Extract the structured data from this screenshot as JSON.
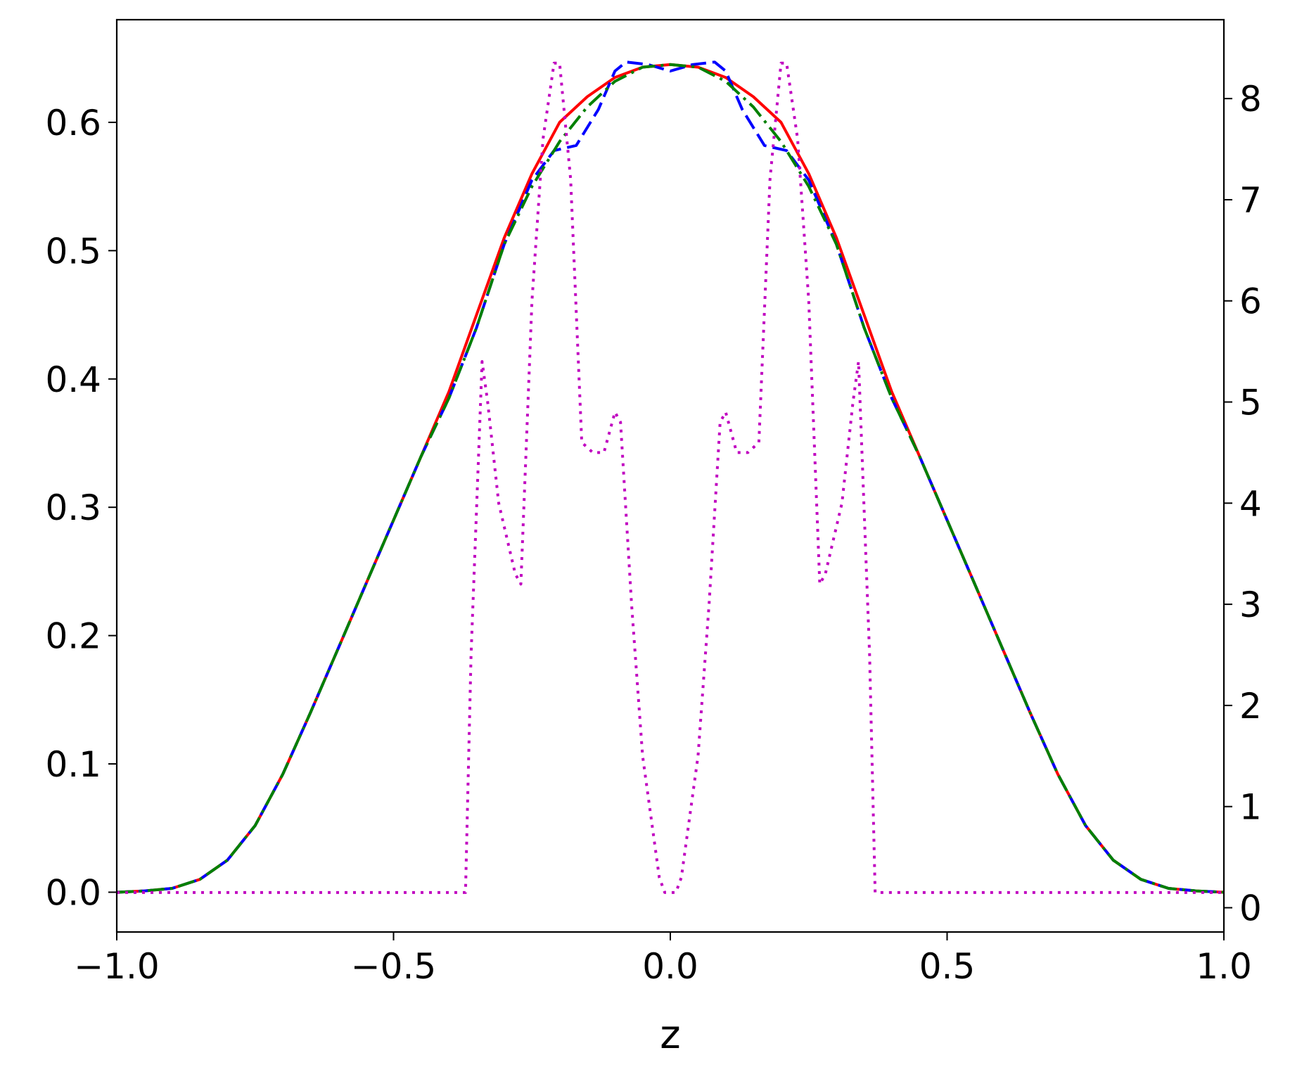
{
  "chart_data": {
    "type": "line",
    "xlabel": "z",
    "ylabel": "",
    "ylabel_right": "",
    "xlim": [
      -1.0,
      1.0
    ],
    "ylim": [
      -0.031,
      0.68
    ],
    "ylim_right": [
      -0.24,
      8.78
    ],
    "grid": false,
    "x_ticks": [
      -1.0,
      -0.5,
      0.0,
      0.5,
      1.0
    ],
    "x_tick_labels": [
      "−1.0",
      "−0.5",
      "0.0",
      "0.5",
      "1.0"
    ],
    "y_ticks": [
      0.0,
      0.1,
      0.2,
      0.3,
      0.4,
      0.5,
      0.6
    ],
    "y_tick_labels": [
      "0.0",
      "0.1",
      "0.2",
      "0.3",
      "0.4",
      "0.5",
      "0.6"
    ],
    "y_right_ticks": [
      0,
      1,
      2,
      3,
      4,
      5,
      6,
      7,
      8
    ],
    "y_right_tick_labels": [
      "0",
      "1",
      "2",
      "3",
      "4",
      "5",
      "6",
      "7",
      "8"
    ],
    "series": [
      {
        "color": "#ff0000",
        "style": "solid",
        "axis": "left",
        "x": [
          -1.0,
          -0.95,
          -0.9,
          -0.85,
          -0.8,
          -0.75,
          -0.7,
          -0.65,
          -0.6,
          -0.55,
          -0.5,
          -0.45,
          -0.4,
          -0.35,
          -0.3,
          -0.25,
          -0.2,
          -0.15,
          -0.1,
          -0.05,
          0.0,
          0.05,
          0.1,
          0.15,
          0.2,
          0.25,
          0.3,
          0.35,
          0.4,
          0.45,
          0.5,
          0.55,
          0.6,
          0.65,
          0.7,
          0.75,
          0.8,
          0.85,
          0.9,
          0.95,
          1.0
        ],
        "y": [
          0.0,
          0.001,
          0.003,
          0.01,
          0.025,
          0.052,
          0.092,
          0.14,
          0.19,
          0.24,
          0.29,
          0.34,
          0.39,
          0.45,
          0.51,
          0.56,
          0.6,
          0.62,
          0.635,
          0.643,
          0.645,
          0.643,
          0.635,
          0.62,
          0.6,
          0.56,
          0.51,
          0.45,
          0.39,
          0.34,
          0.29,
          0.24,
          0.19,
          0.14,
          0.092,
          0.052,
          0.025,
          0.01,
          0.003,
          0.001,
          0.0
        ]
      },
      {
        "color": "#0000ff",
        "style": "dashed",
        "axis": "left",
        "x": [
          -1.0,
          -0.95,
          -0.9,
          -0.85,
          -0.8,
          -0.75,
          -0.7,
          -0.65,
          -0.6,
          -0.55,
          -0.5,
          -0.45,
          -0.4,
          -0.35,
          -0.3,
          -0.25,
          -0.21,
          -0.17,
          -0.13,
          -0.1,
          -0.08,
          -0.04,
          0.0,
          0.04,
          0.08,
          0.1,
          0.13,
          0.17,
          0.21,
          0.25,
          0.3,
          0.35,
          0.4,
          0.45,
          0.5,
          0.55,
          0.6,
          0.65,
          0.7,
          0.75,
          0.8,
          0.85,
          0.9,
          0.95,
          1.0
        ],
        "y": [
          0.0,
          0.001,
          0.003,
          0.01,
          0.025,
          0.052,
          0.092,
          0.14,
          0.19,
          0.24,
          0.29,
          0.34,
          0.385,
          0.44,
          0.505,
          0.555,
          0.578,
          0.582,
          0.61,
          0.64,
          0.647,
          0.645,
          0.64,
          0.645,
          0.647,
          0.64,
          0.61,
          0.582,
          0.578,
          0.555,
          0.505,
          0.44,
          0.385,
          0.34,
          0.29,
          0.24,
          0.19,
          0.14,
          0.092,
          0.052,
          0.025,
          0.01,
          0.003,
          0.001,
          0.0
        ]
      },
      {
        "color": "#008000",
        "style": "dashdot",
        "axis": "left",
        "x": [
          -1.0,
          -0.95,
          -0.9,
          -0.85,
          -0.8,
          -0.75,
          -0.7,
          -0.65,
          -0.6,
          -0.55,
          -0.5,
          -0.45,
          -0.4,
          -0.35,
          -0.3,
          -0.25,
          -0.2,
          -0.15,
          -0.1,
          -0.05,
          0.0,
          0.05,
          0.1,
          0.15,
          0.2,
          0.25,
          0.3,
          0.35,
          0.4,
          0.45,
          0.5,
          0.55,
          0.6,
          0.65,
          0.7,
          0.75,
          0.8,
          0.85,
          0.9,
          0.95,
          1.0
        ],
        "y": [
          0.0,
          0.001,
          0.003,
          0.01,
          0.025,
          0.052,
          0.092,
          0.14,
          0.19,
          0.24,
          0.29,
          0.34,
          0.385,
          0.44,
          0.505,
          0.55,
          0.585,
          0.612,
          0.632,
          0.643,
          0.645,
          0.643,
          0.632,
          0.612,
          0.585,
          0.55,
          0.505,
          0.44,
          0.385,
          0.34,
          0.29,
          0.24,
          0.19,
          0.14,
          0.092,
          0.052,
          0.025,
          0.01,
          0.003,
          0.001,
          0.0
        ]
      },
      {
        "color": "#c000c0",
        "style": "dotted",
        "axis": "right",
        "x": [
          -1.0,
          -0.37,
          -0.36,
          -0.34,
          -0.33,
          -0.31,
          -0.28,
          -0.27,
          -0.25,
          -0.23,
          -0.21,
          -0.2,
          -0.18,
          -0.16,
          -0.14,
          -0.12,
          -0.1,
          -0.09,
          -0.07,
          -0.05,
          -0.02,
          -0.01,
          0.0,
          0.01,
          0.02,
          0.05,
          0.07,
          0.09,
          0.1,
          0.12,
          0.14,
          0.16,
          0.18,
          0.2,
          0.21,
          0.23,
          0.25,
          0.27,
          0.28,
          0.31,
          0.33,
          0.34,
          0.36,
          0.37,
          1.0
        ],
        "y": [
          0.15,
          0.15,
          2.5,
          5.4,
          5.0,
          4.0,
          3.3,
          3.2,
          6.0,
          7.6,
          8.35,
          8.35,
          7.2,
          4.6,
          4.5,
          4.5,
          4.9,
          4.8,
          3.0,
          1.5,
          0.3,
          0.15,
          0.15,
          0.15,
          0.3,
          1.5,
          3.0,
          4.8,
          4.9,
          4.5,
          4.5,
          4.6,
          7.2,
          8.35,
          8.35,
          7.6,
          6.0,
          3.2,
          3.3,
          4.0,
          5.0,
          5.4,
          2.5,
          0.15,
          0.15
        ]
      }
    ]
  }
}
